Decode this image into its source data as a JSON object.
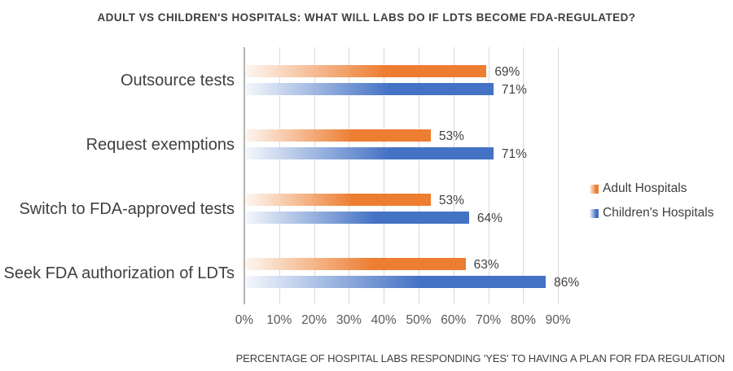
{
  "title": "ADULT VS CHILDREN'S HOSPITALS: WHAT WILL LABS DO IF LDTS BECOME FDA-REGULATED?",
  "footer_caption": "PERCENTAGE OF HOSPITAL LABS RESPONDING 'YES' TO HAVING A PLAN FOR FDA REGULATION",
  "colors": {
    "adult_orange": "#ED7D31",
    "adult_orange_light": "#FDF6F0",
    "children_blue": "#4472C4",
    "children_blue_light": "#F4F7FC",
    "gridline": "#D9D9D9",
    "axis_line": "#B3B3B3",
    "title_text": "#3F3F3F",
    "label_text": "#404040",
    "tick_text": "#595959"
  },
  "legend": {
    "position": "right",
    "items": [
      {
        "label": "Adult Hospitals",
        "color": "#ED7D31"
      },
      {
        "label": "Children's Hospitals",
        "color": "#4472C4"
      }
    ]
  },
  "chart_data": {
    "type": "bar",
    "orientation": "horizontal",
    "title": "ADULT VS CHILDREN'S HOSPITALS: WHAT WILL LABS DO IF LDTS BECOME FDA-REGULATED?",
    "xlabel": "PERCENTAGE OF HOSPITAL LABS RESPONDING 'YES' TO HAVING A PLAN FOR FDA REGULATION",
    "ylabel": "",
    "grid": true,
    "legend_position": "right",
    "categories": [
      "Outsource tests",
      "Request exemptions",
      "Switch to FDA-approved tests",
      "Seek FDA authorization of LDTs"
    ],
    "series": [
      {
        "name": "Adult Hospitals",
        "color": "#ED7D31",
        "gradient_start": "#FDF6F0",
        "values": [
          69,
          53,
          53,
          63
        ]
      },
      {
        "name": "Children's Hospitals",
        "color": "#4472C4",
        "gradient_start": "#F4F7FC",
        "values": [
          71,
          71,
          64,
          86
        ]
      }
    ],
    "data_labels": [
      [
        "69%",
        "53%",
        "53%",
        "63%"
      ],
      [
        "71%",
        "71%",
        "64%",
        "86%"
      ]
    ],
    "x_axis": {
      "min": 0,
      "max": 90,
      "step": 10,
      "tick_labels": [
        "0%",
        "10%",
        "20%",
        "30%",
        "40%",
        "50%",
        "60%",
        "70%",
        "80%",
        "90%"
      ]
    }
  }
}
